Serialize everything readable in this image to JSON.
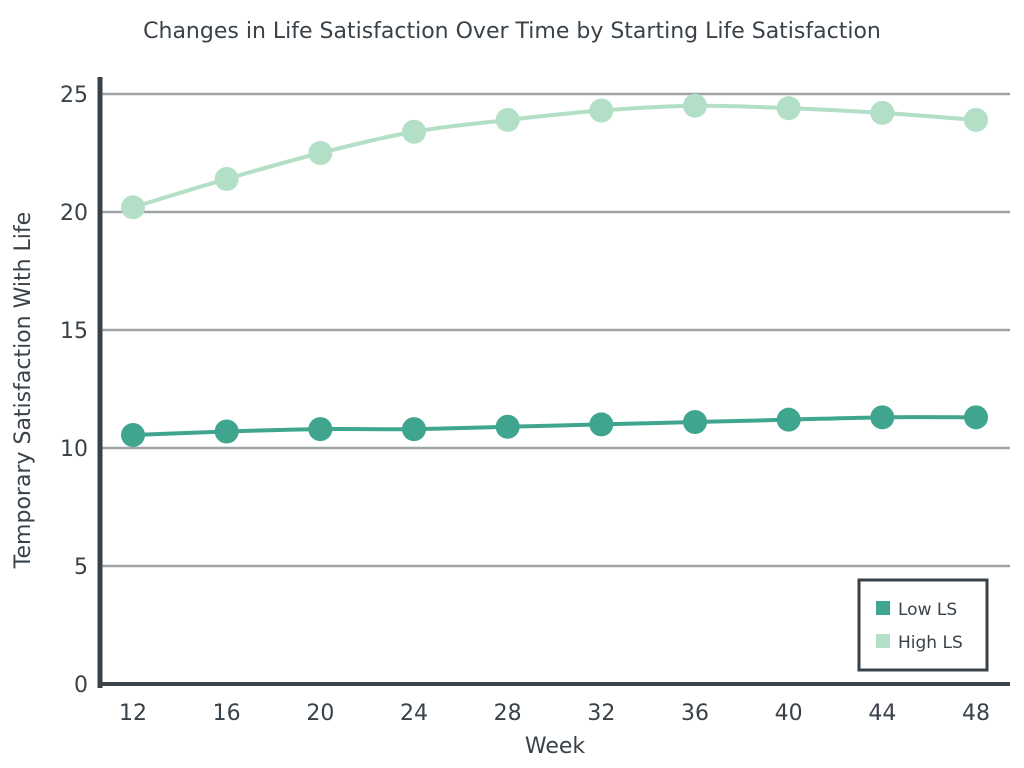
{
  "chart_data": {
    "type": "line",
    "title": "Changes in Life Satisfaction Over Time by Starting Life Satisfaction",
    "xlabel": "Week",
    "ylabel": "Temporary Satisfaction With Life",
    "x": [
      12,
      16,
      20,
      24,
      28,
      32,
      36,
      40,
      44,
      48
    ],
    "ylim": [
      0,
      25
    ],
    "yticks": [
      0,
      5,
      10,
      15,
      20,
      25
    ],
    "grid": true,
    "legend_position": "bottom-right",
    "series": [
      {
        "name": "Low LS",
        "color": "#3fa58f",
        "values": [
          10.55,
          10.7,
          10.8,
          10.8,
          10.9,
          11.0,
          11.1,
          11.2,
          11.3,
          11.3
        ]
      },
      {
        "name": "High LS",
        "color": "#b2dfc6",
        "values": [
          20.2,
          21.4,
          22.5,
          23.4,
          23.9,
          24.3,
          24.5,
          24.4,
          24.2,
          23.9
        ]
      }
    ]
  }
}
